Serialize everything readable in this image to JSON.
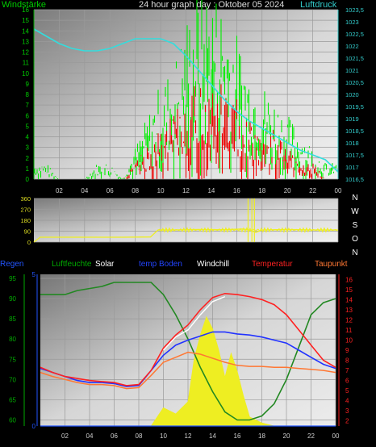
{
  "title": "24 hour graph day : Oktober 05 2024",
  "chart_data": [
    {
      "id": "wind_pressure",
      "type": "line",
      "left_label": "Windstärke",
      "right_label": "Luftdruck",
      "x_ticks": [
        "02",
        "04",
        "06",
        "08",
        "10",
        "12",
        "14",
        "16",
        "18",
        "20",
        "22",
        "00"
      ],
      "x_range_hours": [
        0,
        24
      ],
      "left_axis": {
        "ticks": [
          0,
          1,
          2,
          3,
          4,
          5,
          6,
          7,
          8,
          9,
          10,
          11,
          12,
          13,
          14,
          15,
          16
        ],
        "range": [
          0,
          16
        ]
      },
      "right_axis": {
        "ticks": [
          "1016,5",
          "1017",
          "1017,5",
          "1018",
          "1018,5",
          "1019",
          "1019,5",
          "1020",
          "1020,5",
          "1021",
          "1021,5",
          "1022",
          "1022,5",
          "1023",
          "1023,5"
        ],
        "range": [
          1016.5,
          1023.5
        ]
      },
      "grid": true,
      "series": [
        {
          "name": "Luftdruck",
          "color": "#33dddd",
          "points": [
            [
              0,
              1022.7
            ],
            [
              1,
              1022.4
            ],
            [
              2,
              1022.1
            ],
            [
              3,
              1021.9
            ],
            [
              4,
              1021.8
            ],
            [
              5,
              1021.8
            ],
            [
              6,
              1021.9
            ],
            [
              7,
              1022.1
            ],
            [
              8,
              1022.3
            ],
            [
              9,
              1022.3
            ],
            [
              10,
              1022.3
            ],
            [
              11,
              1022.1
            ],
            [
              12,
              1021.6
            ],
            [
              13,
              1021.0
            ],
            [
              14,
              1020.4
            ],
            [
              15,
              1019.8
            ],
            [
              16,
              1019.3
            ],
            [
              17,
              1018.9
            ],
            [
              18,
              1018.6
            ],
            [
              19,
              1018.3
            ],
            [
              20,
              1018.0
            ],
            [
              21,
              1017.7
            ],
            [
              22,
              1017.5
            ],
            [
              23,
              1017.3
            ],
            [
              24,
              1016.8
            ]
          ]
        },
        {
          "name": "gust",
          "color": "#00ee00",
          "points": [
            [
              0,
              1
            ],
            [
              1,
              1
            ],
            [
              2,
              0
            ],
            [
              3,
              0
            ],
            [
              4,
              0
            ],
            [
              5,
              1
            ],
            [
              6,
              1
            ],
            [
              7,
              0
            ],
            [
              8,
              2
            ],
            [
              9,
              4
            ],
            [
              10,
              6
            ],
            [
              11,
              7
            ],
            [
              12,
              10
            ],
            [
              13,
              12
            ],
            [
              14,
              12
            ],
            [
              15,
              11
            ],
            [
              16,
              9
            ],
            [
              17,
              7
            ],
            [
              18,
              6
            ],
            [
              19,
              5
            ],
            [
              20,
              4
            ],
            [
              21,
              3
            ],
            [
              22,
              2
            ],
            [
              23,
              1
            ],
            [
              24,
              1
            ]
          ]
        },
        {
          "name": "average",
          "color": "#ee0000",
          "points": [
            [
              0,
              0
            ],
            [
              1,
              0
            ],
            [
              2,
              0
            ],
            [
              3,
              0
            ],
            [
              4,
              0
            ],
            [
              5,
              0
            ],
            [
              6,
              0
            ],
            [
              7,
              0
            ],
            [
              8,
              1
            ],
            [
              9,
              2
            ],
            [
              10,
              3
            ],
            [
              11,
              4
            ],
            [
              12,
              5
            ],
            [
              13,
              6
            ],
            [
              14,
              6
            ],
            [
              15,
              6
            ],
            [
              16,
              5
            ],
            [
              17,
              4
            ],
            [
              18,
              3
            ],
            [
              19,
              3
            ],
            [
              20,
              2
            ],
            [
              21,
              1
            ],
            [
              22,
              1
            ],
            [
              23,
              0
            ],
            [
              24,
              0
            ]
          ]
        }
      ]
    },
    {
      "id": "direction",
      "type": "line",
      "left_axis": {
        "ticks": [
          0,
          90,
          180,
          270,
          360
        ],
        "range": [
          0,
          360
        ]
      },
      "right_labels": [
        "N",
        "W",
        "S",
        "O",
        "N"
      ],
      "grid": true,
      "series": [
        {
          "name": "direction",
          "color": "#eeee22",
          "points": [
            [
              0,
              0
            ],
            [
              0.5,
              40
            ],
            [
              1,
              40
            ],
            [
              4,
              40
            ],
            [
              7,
              40
            ],
            [
              9.2,
              42
            ],
            [
              9.8,
              100
            ],
            [
              11,
              100
            ],
            [
              13,
              104
            ],
            [
              15,
              102
            ],
            [
              16.5,
              108
            ],
            [
              17,
              100
            ],
            [
              17.5,
              80
            ],
            [
              18,
              100
            ],
            [
              20,
              104
            ],
            [
              22,
              100
            ],
            [
              24,
              100
            ]
          ]
        }
      ]
    },
    {
      "id": "temperature",
      "type": "line",
      "labels": [
        "Regen",
        "Luftfeuchte",
        "Solar",
        "temp Boden",
        "Windchill",
        "Temperatur",
        "Taupunkt"
      ],
      "label_colors": [
        "#2255ff",
        "#00aa00",
        "#ffffff",
        "#2244ff",
        "#ffffff",
        "#ff2222",
        "#ff7733"
      ],
      "left_axis_rain": {
        "ticks": [
          0,
          5
        ],
        "range": [
          0,
          5
        ],
        "color": "#2255ff"
      },
      "left_axis_humidity": {
        "ticks": [
          60,
          65,
          70,
          75,
          80,
          85,
          90,
          95
        ],
        "range": [
          58.5,
          96
        ],
        "color": "#00aa00"
      },
      "right_axis": {
        "ticks": [
          2,
          3,
          4,
          5,
          6,
          7,
          8,
          9,
          10,
          11,
          12,
          13,
          14,
          15,
          16
        ],
        "range": [
          1.5,
          16.5
        ],
        "color": "#ff2222"
      },
      "grid": true,
      "series": [
        {
          "name": "Luftfeuchte",
          "color": "#228822",
          "points": [
            [
              0,
              91
            ],
            [
              2,
              91
            ],
            [
              3,
              92
            ],
            [
              5,
              93
            ],
            [
              6,
              94
            ],
            [
              7,
              94
            ],
            [
              8,
              94
            ],
            [
              9,
              94
            ],
            [
              10,
              91
            ],
            [
              11,
              86
            ],
            [
              12,
              80
            ],
            [
              13,
              73
            ],
            [
              14,
              67
            ],
            [
              15,
              62
            ],
            [
              16,
              60
            ],
            [
              17,
              60
            ],
            [
              18,
              61
            ],
            [
              19,
              64
            ],
            [
              20,
              70
            ],
            [
              21,
              78
            ],
            [
              22,
              86
            ],
            [
              23,
              89
            ],
            [
              24,
              90
            ]
          ]
        },
        {
          "name": "Temperatur",
          "color": "#ff2222",
          "points": [
            [
              0,
              7.3
            ],
            [
              1,
              6.8
            ],
            [
              2,
              6.4
            ],
            [
              3,
              6.2
            ],
            [
              4,
              6.0
            ],
            [
              5,
              5.9
            ],
            [
              6,
              5.8
            ],
            [
              7,
              5.5
            ],
            [
              8,
              5.6
            ],
            [
              9,
              7.0
            ],
            [
              10,
              9.2
            ],
            [
              11,
              10.5
            ],
            [
              12,
              11.5
            ],
            [
              13,
              13.0
            ],
            [
              14,
              14.2
            ],
            [
              15,
              14.6
            ],
            [
              16,
              14.5
            ],
            [
              17,
              14.3
            ],
            [
              18,
              14.0
            ],
            [
              19,
              13.5
            ],
            [
              20,
              12.5
            ],
            [
              21,
              11.0
            ],
            [
              22,
              9.5
            ],
            [
              23,
              8.0
            ],
            [
              24,
              7.3
            ]
          ]
        },
        {
          "name": "Windchill",
          "color": "#ffffff",
          "points": [
            [
              10,
              9.0
            ],
            [
              11,
              10.3
            ],
            [
              12,
              11.0
            ],
            [
              13,
              12.5
            ],
            [
              14,
              13.8
            ],
            [
              15,
              14.3
            ]
          ]
        },
        {
          "name": "temp Boden",
          "color": "#2233ff",
          "points": [
            [
              0,
              7.2
            ],
            [
              1,
              6.8
            ],
            [
              2,
              6.4
            ],
            [
              3,
              6.0
            ],
            [
              4,
              5.8
            ],
            [
              5,
              5.8
            ],
            [
              6,
              5.7
            ],
            [
              7,
              5.4
            ],
            [
              8,
              5.5
            ],
            [
              9,
              7.0
            ],
            [
              10,
              8.5
            ],
            [
              11,
              9.5
            ],
            [
              12,
              10.0
            ],
            [
              13,
              10.4
            ],
            [
              14,
              10.8
            ],
            [
              15,
              10.8
            ],
            [
              16,
              10.6
            ],
            [
              17,
              10.5
            ],
            [
              18,
              10.3
            ],
            [
              19,
              10.0
            ],
            [
              20,
              9.7
            ],
            [
              21,
              9.0
            ],
            [
              22,
              8.3
            ],
            [
              23,
              7.6
            ],
            [
              24,
              7.2
            ]
          ]
        },
        {
          "name": "Taupunkt",
          "color": "#ff7733",
          "points": [
            [
              0,
              6.8
            ],
            [
              1,
              6.4
            ],
            [
              2,
              6.1
            ],
            [
              3,
              5.8
            ],
            [
              4,
              5.6
            ],
            [
              5,
              5.6
            ],
            [
              6,
              5.5
            ],
            [
              7,
              5.2
            ],
            [
              8,
              5.3
            ],
            [
              9,
              6.5
            ],
            [
              10,
              7.8
            ],
            [
              11,
              8.3
            ],
            [
              12,
              8.8
            ],
            [
              13,
              8.6
            ],
            [
              14,
              8.2
            ],
            [
              15,
              7.8
            ],
            [
              16,
              7.5
            ],
            [
              17,
              7.4
            ],
            [
              18,
              7.4
            ],
            [
              19,
              7.3
            ],
            [
              20,
              7.3
            ],
            [
              21,
              7.2
            ],
            [
              22,
              7.1
            ],
            [
              23,
              7.0
            ],
            [
              24,
              6.8
            ]
          ]
        },
        {
          "name": "Regen",
          "color": "#2255ff",
          "points": [
            [
              0,
              0
            ],
            [
              24,
              0
            ]
          ]
        },
        {
          "name": "Solar",
          "color": "#eeee22",
          "points": [
            [
              9,
              0
            ],
            [
              9.5,
              0.3
            ],
            [
              10,
              0.6
            ],
            [
              11,
              0.4
            ],
            [
              12,
              0.8
            ],
            [
              12.5,
              2.2
            ],
            [
              13,
              3.0
            ],
            [
              13.5,
              3.6
            ],
            [
              14,
              3.2
            ],
            [
              14.5,
              2.5
            ],
            [
              15,
              1.6
            ],
            [
              15.5,
              2.4
            ],
            [
              16,
              1.8
            ],
            [
              16.5,
              1.0
            ],
            [
              17,
              0.3
            ],
            [
              18,
              0.1
            ],
            [
              19,
              0
            ]
          ]
        }
      ]
    }
  ]
}
